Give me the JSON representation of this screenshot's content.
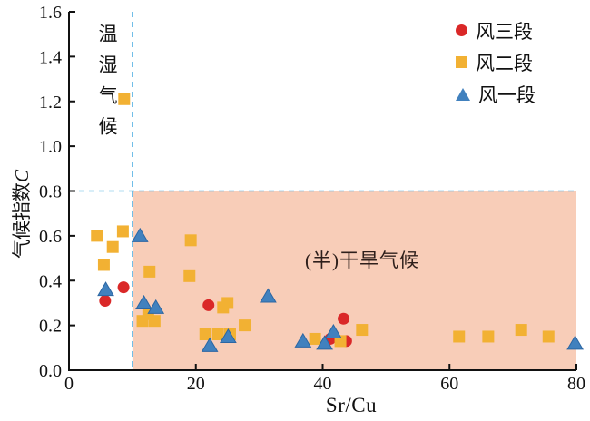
{
  "colors": {
    "arid_fill": "#F8CDB8",
    "dashed_line": "#66B9E6",
    "axis": "#111111",
    "red": "#DA2828",
    "yellow": "#F2B133",
    "blue": "#4181BE",
    "blue_stroke": "#2B66A3"
  },
  "annotations": {
    "humid_zone": "温湿气候",
    "arid_zone": "(半)干旱气候"
  },
  "axis_titles": {
    "x": "Sr/Cu",
    "y_cn": "气候指数",
    "y_var": "C"
  },
  "chart_data": {
    "type": "scatter",
    "xlabel": "Sr/Cu",
    "ylabel": "气候指数C",
    "xlim": [
      0,
      80
    ],
    "ylim": [
      0,
      1.6
    ],
    "x_ticks": [
      "0",
      "20",
      "40",
      "60",
      "80"
    ],
    "y_ticks": [
      "0.0",
      "0.2",
      "0.4",
      "0.6",
      "0.8",
      "1.0",
      "1.2",
      "1.4",
      "1.6"
    ],
    "grid": false,
    "legend_position": "top-right",
    "threshold_x": 10,
    "threshold_y": 0.8,
    "zone_labels": {
      "left_of_x_threshold": "温湿气候",
      "below_y_threshold_right": "(半)干旱气候"
    },
    "series": [
      {
        "name": "风三段",
        "marker": "circle",
        "color": "#DA2828",
        "points": [
          [
            5.7,
            0.31
          ],
          [
            8.6,
            0.37
          ],
          [
            22,
            0.29
          ],
          [
            41.2,
            0.14
          ],
          [
            43.3,
            0.23
          ],
          [
            43.7,
            0.13
          ]
        ]
      },
      {
        "name": "风二段",
        "marker": "square",
        "color": "#F2B133",
        "points": [
          [
            4.4,
            0.6
          ],
          [
            6.9,
            0.55
          ],
          [
            5.5,
            0.47
          ],
          [
            8.5,
            0.62
          ],
          [
            8.7,
            1.21
          ],
          [
            12.7,
            0.44
          ],
          [
            11.6,
            0.22
          ],
          [
            12.5,
            0.25
          ],
          [
            13.5,
            0.22
          ],
          [
            19.2,
            0.58
          ],
          [
            19.0,
            0.42
          ],
          [
            24.3,
            0.28
          ],
          [
            25.0,
            0.3
          ],
          [
            27.7,
            0.2
          ],
          [
            21.5,
            0.16
          ],
          [
            23.5,
            0.16
          ],
          [
            25.4,
            0.16
          ],
          [
            38.8,
            0.14
          ],
          [
            42.8,
            0.13
          ],
          [
            46.2,
            0.18
          ],
          [
            61.5,
            0.15
          ],
          [
            66.1,
            0.15
          ],
          [
            71.3,
            0.18
          ],
          [
            75.6,
            0.15
          ]
        ]
      },
      {
        "name": "风一段",
        "marker": "triangle",
        "color": "#4181BE",
        "stroke": "#2B66A3",
        "points": [
          [
            5.8,
            0.36
          ],
          [
            11.2,
            0.6
          ],
          [
            11.8,
            0.3
          ],
          [
            13.7,
            0.28
          ],
          [
            22.2,
            0.11
          ],
          [
            25.1,
            0.15
          ],
          [
            31.4,
            0.33
          ],
          [
            36.9,
            0.13
          ],
          [
            40.3,
            0.12
          ],
          [
            41.7,
            0.17
          ],
          [
            79.8,
            0.12
          ]
        ]
      }
    ]
  }
}
